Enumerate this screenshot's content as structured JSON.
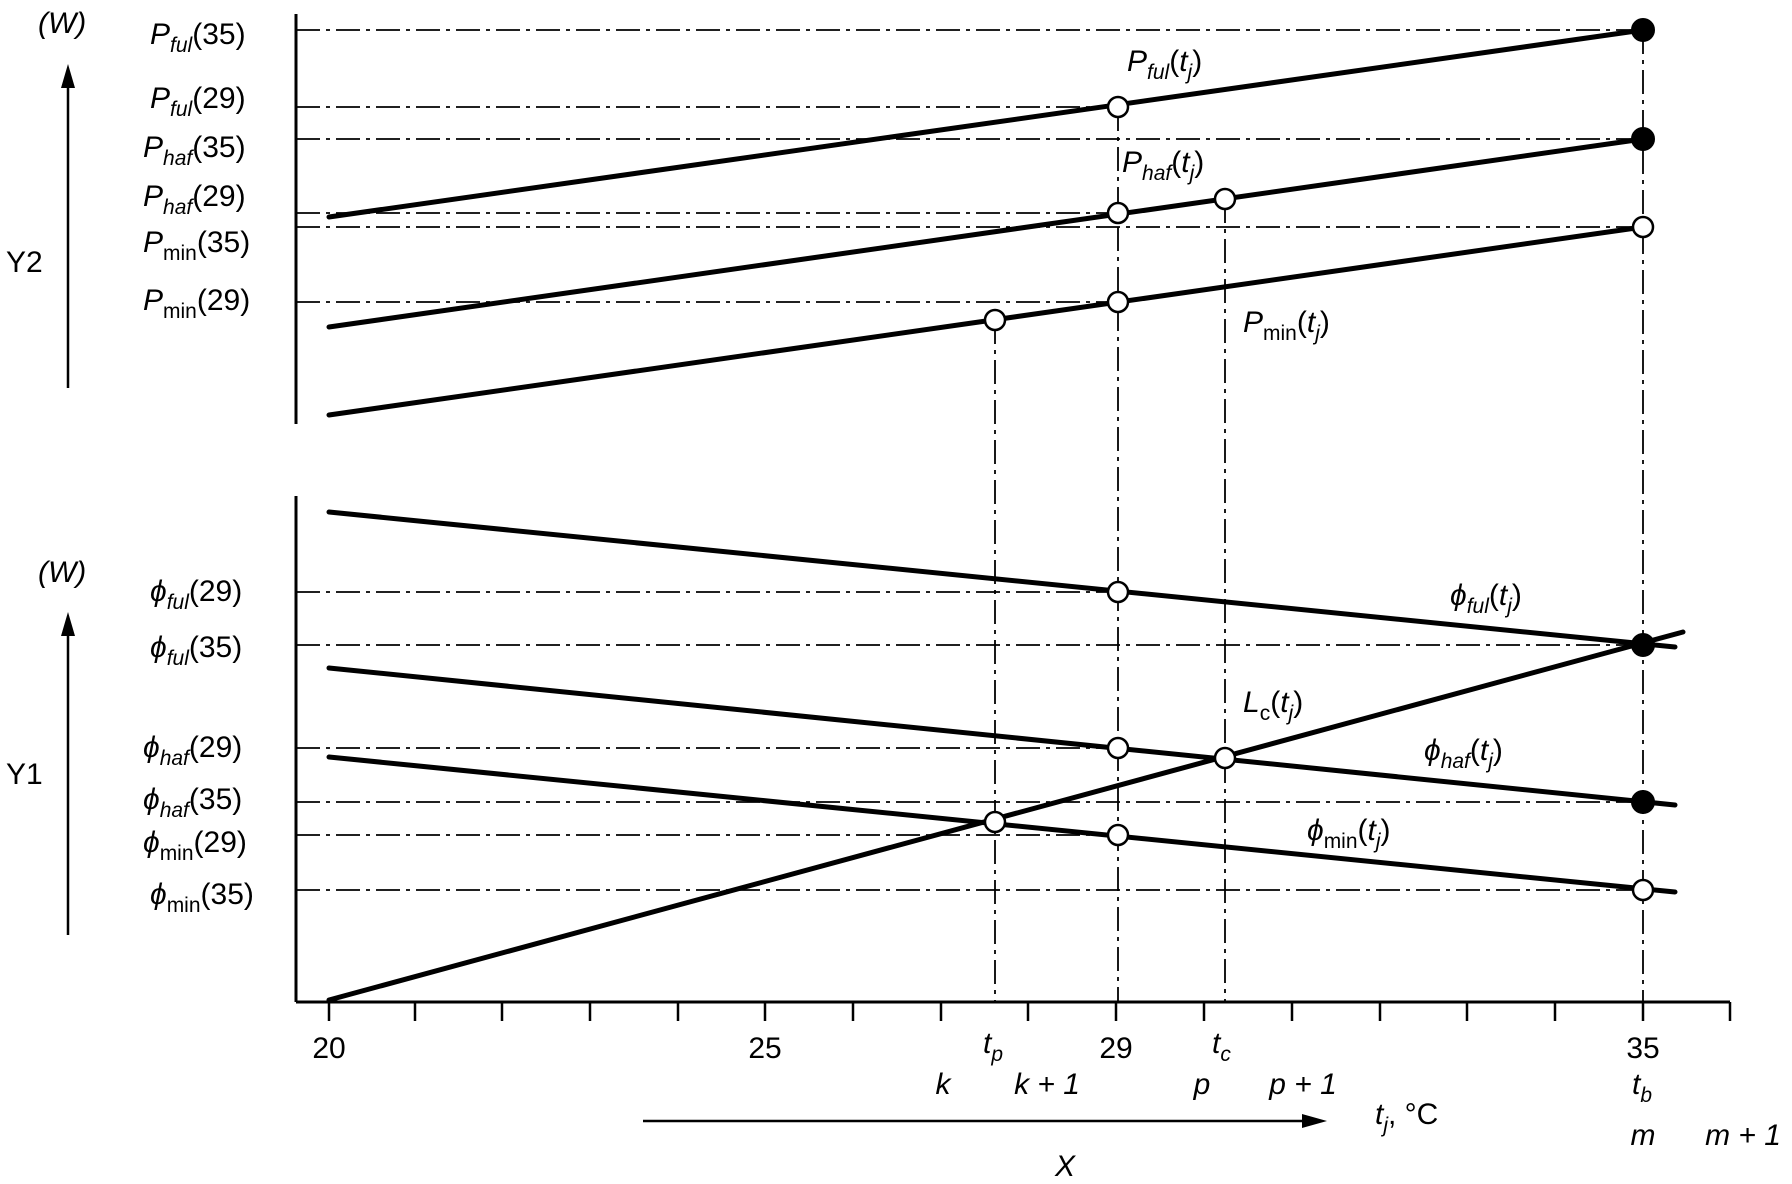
{
  "x_axis": {
    "label": "X",
    "variable": "t",
    "variable_sub": "j",
    "unit_suffix": ", °C",
    "ticks": [
      "20",
      "25",
      "29",
      "35"
    ],
    "markers": [
      "t",
      "p",
      "t",
      "c",
      "t",
      "b"
    ],
    "bins": [
      "k",
      "k + 1",
      "p",
      "p + 1",
      "m",
      "m + 1"
    ]
  },
  "upper_panel": {
    "axis_label": "Y2",
    "unit": "(W)",
    "level_labels": [
      {
        "sym": "P",
        "sub": "ful",
        "arg": "(35)"
      },
      {
        "sym": "P",
        "sub": "ful",
        "arg": "(29)"
      },
      {
        "sym": "P",
        "sub": "haf",
        "arg": "(35)"
      },
      {
        "sym": "P",
        "sub": "haf",
        "arg": "(29)"
      },
      {
        "sym": "P",
        "sub": "min",
        "arg": "(35)"
      },
      {
        "sym": "P",
        "sub": "min",
        "arg": "(29)"
      }
    ],
    "curve_labels": [
      {
        "sym": "P",
        "sub": "ful",
        "arg": "t",
        "arg_sub": "j"
      },
      {
        "sym": "P",
        "sub": "haf",
        "arg": "t",
        "arg_sub": "j"
      },
      {
        "sym": "P",
        "sub": "min",
        "arg": "t",
        "arg_sub": "j"
      }
    ]
  },
  "lower_panel": {
    "axis_label": "Y1",
    "unit": "(W)",
    "level_labels": [
      {
        "sym": "ϕ",
        "sub": "ful",
        "arg": "(29)"
      },
      {
        "sym": "ϕ",
        "sub": "ful",
        "arg": "(35)"
      },
      {
        "sym": "ϕ",
        "sub": "haf",
        "arg": "(29)"
      },
      {
        "sym": "ϕ",
        "sub": "haf",
        "arg": "(35)"
      },
      {
        "sym": "ϕ",
        "sub": "min",
        "arg": "(29)"
      },
      {
        "sym": "ϕ",
        "sub": "min",
        "arg": "(35)"
      }
    ],
    "curve_labels": [
      {
        "sym": "ϕ",
        "sub": "ful",
        "arg": "t",
        "arg_sub": "j"
      },
      {
        "sym": "L",
        "sub": "c",
        "arg": "t",
        "arg_sub": "j"
      },
      {
        "sym": "ϕ",
        "sub": "haf",
        "arg": "t",
        "arg_sub": "j"
      },
      {
        "sym": "ϕ",
        "sub": "min",
        "arg": "t",
        "arg_sub": "j"
      }
    ]
  }
}
